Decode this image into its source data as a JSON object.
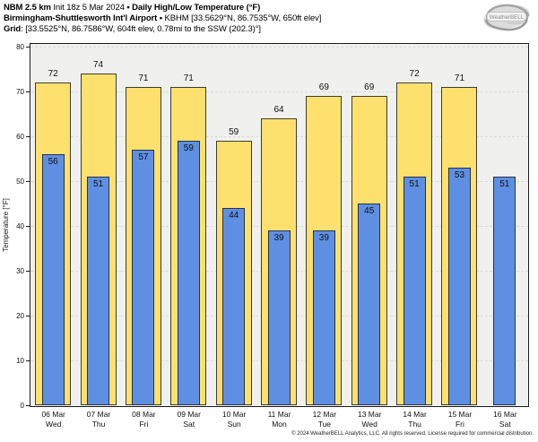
{
  "header": {
    "lines": [
      [
        {
          "text": "NBM 2.5 km ",
          "bold": true
        },
        {
          "text": "Init 18z 5 Mar 2024 ",
          "bold": false
        },
        {
          "text": "• Daily High/Low Temperature (°F)",
          "bold": true
        }
      ],
      [
        {
          "text": "Birmingham-Shuttlesworth Int'l Airport ",
          "bold": true
        },
        {
          "text": "• ",
          "bold": true
        },
        {
          "text": "KBHM [33.5629°N, 86.7535°W, 650ft elev]",
          "bold": false
        }
      ],
      [
        {
          "text": "Grid",
          "bold": true
        },
        {
          "text": ": [33.5525°N, 86.7586°W, 604ft elev, 0.78mi to the SSW (202.3)°]",
          "bold": false
        }
      ]
    ],
    "logo_text": "WeatherBELL"
  },
  "chart_data": {
    "type": "bar",
    "title": "NBM 2.5 km Init 18z 5 Mar 2024 • Daily High/Low Temperature (°F)",
    "subtitle": "Birmingham-Shuttlesworth Int'l Airport • KBHM [33.5629°N, 86.7535°W, 650ft elev]",
    "grid_info": "Grid: [33.5525°N, 86.7586°W, 604ft elev, 0.78mi to the SSW (202.3)°]",
    "categories": [
      "06 Mar",
      "07 Mar",
      "08 Mar",
      "09 Mar",
      "10 Mar",
      "11 Mar",
      "12 Mar",
      "13 Mar",
      "14 Mar",
      "15 Mar",
      "16 Mar"
    ],
    "weekdays": [
      "Wed",
      "Thu",
      "Fri",
      "Sat",
      "Sun",
      "Mon",
      "Tue",
      "Wed",
      "Thu",
      "Fri",
      "Sat"
    ],
    "series": [
      {
        "name": "High",
        "values": [
          72,
          74,
          71,
          71,
          59,
          64,
          69,
          69,
          72,
          71,
          null
        ]
      },
      {
        "name": "Low",
        "values": [
          56,
          51,
          57,
          59,
          44,
          39,
          39,
          45,
          51,
          53,
          51
        ]
      }
    ],
    "xlabel": "",
    "ylabel": "Temperature [°F]",
    "ylim": [
      0,
      80
    ],
    "yticks": [
      0,
      10,
      20,
      30,
      40,
      50,
      60,
      70,
      80
    ],
    "grid": true,
    "legend_position": "none"
  },
  "colors": {
    "high_fill": "#fde06e",
    "high_border": "#3d3d33",
    "low_fill": "#5e8fe2",
    "low_border": "#28324b",
    "plot_bg": "#f0f0ee",
    "gridline": "#d9d9d9",
    "axis": "#1a1a1a"
  },
  "footer": {
    "copyright": "© 2024 WeatherBELL Analytics, LLC. All rights reserved. License required for commercial distribution."
  }
}
